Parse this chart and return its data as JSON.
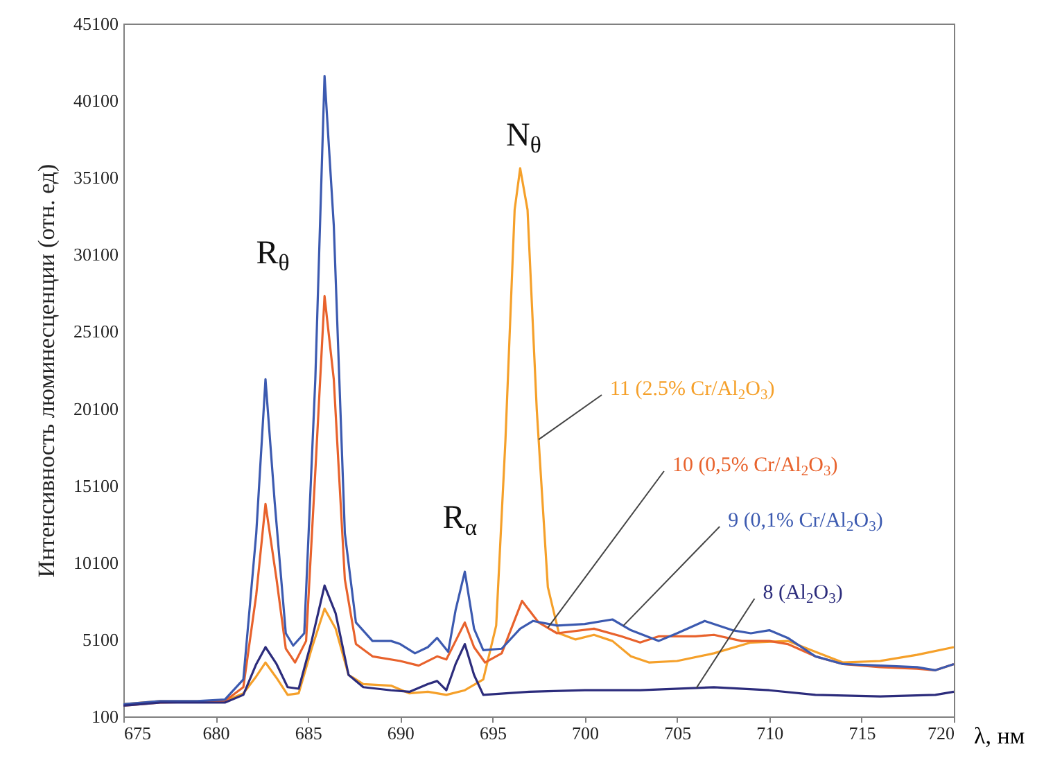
{
  "chart_data": {
    "type": "line",
    "xlabel": "λ, нм",
    "ylabel": "Интенсивность люминесценции (отн. ед)",
    "xlim": [
      675,
      720
    ],
    "xticks": [
      675,
      680,
      685,
      690,
      695,
      700,
      705,
      710,
      715,
      720
    ],
    "ylim": [
      100,
      45100
    ],
    "yticks": [
      100,
      5100,
      10100,
      15100,
      20100,
      25100,
      30100,
      35100,
      40100,
      45100
    ],
    "grid": false,
    "annotations": [
      "R$_{θ}$",
      "R$_{α}$",
      "N$_{θ}$"
    ],
    "series": [
      {
        "name": "11 (2.5% Cr/Al$_{2}$O$_{3}$)",
        "color": "#f5a02a",
        "x": [
          675,
          677,
          680.5,
          681.5,
          682.2,
          682.7,
          683.3,
          683.9,
          684.5,
          685.2,
          685.9,
          686.5,
          687.2,
          688,
          689.5,
          690.5,
          691.5,
          692.5,
          693.5,
          694.5,
          695.2,
          695.7,
          696.2,
          696.5,
          696.9,
          697.4,
          698,
          698.6,
          699.5,
          700.5,
          701.5,
          702.5,
          703.5,
          705,
          707,
          709,
          711,
          712.5,
          714,
          716,
          718,
          720
        ],
        "values": [
          900,
          1100,
          1100,
          1600,
          2700,
          3600,
          2600,
          1500,
          1600,
          4500,
          7100,
          5800,
          2800,
          2200,
          2100,
          1600,
          1700,
          1500,
          1800,
          2500,
          6000,
          18000,
          33000,
          35700,
          33000,
          20000,
          8500,
          5500,
          5100,
          5400,
          5000,
          4000,
          3600,
          3700,
          4200,
          4900,
          5000,
          4300,
          3600,
          3700,
          4100,
          4600
        ]
      },
      {
        "name": "10 (0,5% Cr/Al$_{2}$O$_{3}$)",
        "color": "#e8622c",
        "x": [
          675,
          677,
          680.5,
          681.5,
          682.2,
          682.7,
          683.3,
          683.8,
          684.3,
          684.9,
          685.4,
          685.9,
          686.4,
          687,
          687.6,
          688.5,
          690,
          691,
          692,
          692.5,
          693,
          693.5,
          694,
          694.6,
          695.5,
          696.6,
          697.5,
          698.5,
          700.5,
          702,
          703,
          704,
          706,
          707,
          708.5,
          710,
          711,
          712.5,
          714,
          716,
          718,
          719,
          720
        ],
        "values": [
          800,
          1000,
          1100,
          2000,
          8000,
          13900,
          9000,
          4500,
          3600,
          5000,
          16000,
          27400,
          22000,
          9000,
          4800,
          4000,
          3700,
          3400,
          4000,
          3800,
          5000,
          6200,
          4600,
          3600,
          4200,
          7600,
          6200,
          5500,
          5800,
          5300,
          4900,
          5300,
          5300,
          5400,
          5000,
          5000,
          4800,
          4000,
          3500,
          3300,
          3200,
          3100,
          3500
        ]
      },
      {
        "name": "9 (0,1% Cr/Al$_{2}$O$_{3}$)",
        "color": "#3c5ab0",
        "x": [
          675,
          677,
          679,
          680.5,
          681.5,
          682.2,
          682.7,
          683.2,
          683.8,
          684.2,
          684.8,
          685.4,
          685.9,
          686.4,
          687,
          687.6,
          688.5,
          689.5,
          690,
          690.8,
          691.5,
          692,
          692.6,
          693,
          693.5,
          694,
          694.5,
          695.5,
          696.5,
          697.2,
          698.5,
          700,
          701.5,
          702.5,
          704,
          705,
          706.5,
          708,
          709,
          710,
          711,
          712.5,
          714,
          716,
          718,
          719,
          720
        ],
        "values": [
          900,
          1100,
          1100,
          1200,
          2500,
          12000,
          22000,
          14000,
          5500,
          4700,
          5500,
          22000,
          41700,
          32000,
          12000,
          6200,
          5000,
          5000,
          4800,
          4200,
          4600,
          5200,
          4300,
          7000,
          9500,
          5800,
          4400,
          4500,
          5800,
          6300,
          6000,
          6100,
          6400,
          5700,
          5000,
          5500,
          6300,
          5700,
          5500,
          5700,
          5200,
          4000,
          3500,
          3400,
          3300,
          3100,
          3500
        ]
      },
      {
        "name": "8 (Al$_{2}$O$_{3}$)",
        "color": "#2c2c7c",
        "x": [
          675,
          677,
          680.5,
          681.5,
          682.2,
          682.7,
          683.3,
          683.9,
          684.5,
          685.2,
          685.9,
          686.5,
          687.2,
          688,
          689.5,
          690.5,
          691.5,
          692,
          692.5,
          693,
          693.5,
          694,
          694.5,
          697,
          700,
          703,
          707,
          710,
          712.5,
          716,
          719,
          720
        ],
        "values": [
          800,
          1000,
          1000,
          1500,
          3500,
          4600,
          3500,
          2000,
          1900,
          5000,
          8600,
          6800,
          2800,
          2000,
          1800,
          1700,
          2200,
          2400,
          1800,
          3500,
          4800,
          2800,
          1500,
          1700,
          1800,
          1800,
          2000,
          1800,
          1500,
          1400,
          1500,
          1700
        ]
      }
    ]
  }
}
